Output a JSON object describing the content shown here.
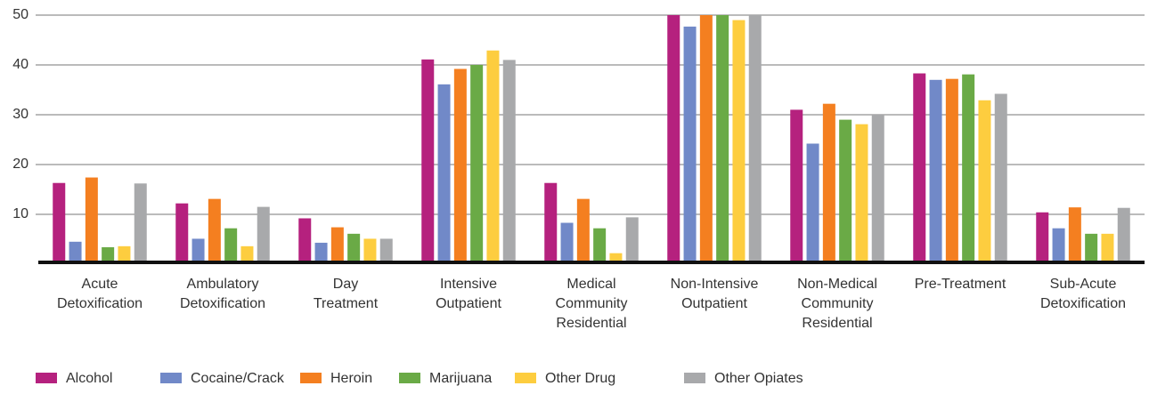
{
  "chart_data": {
    "type": "bar",
    "categories": [
      [
        "Acute",
        "Detoxification"
      ],
      [
        "Ambulatory",
        "Detoxification"
      ],
      [
        "Day",
        "Treatment"
      ],
      [
        "Intensive",
        "Outpatient"
      ],
      [
        "Medical",
        "Community",
        "Residential"
      ],
      [
        "Non-Intensive",
        "Outpatient"
      ],
      [
        "Non-Medical",
        "Community",
        "Residential"
      ],
      [
        "Pre-Treatment"
      ],
      [
        "Sub-Acute",
        "Detoxification"
      ]
    ],
    "series": [
      {
        "name": "Alcohol",
        "color": "#b5217e",
        "values": [
          16.3,
          12.2,
          9.2,
          41.1,
          16.3,
          50,
          31.0,
          38.3,
          10.4
        ]
      },
      {
        "name": "Cocaine/Crack",
        "color": "#7189c8",
        "values": [
          4.5,
          5.1,
          4.3,
          36.1,
          8.3,
          47.7,
          24.2,
          37.0,
          7.2
        ]
      },
      {
        "name": "Heroin",
        "color": "#f47f20",
        "values": [
          17.4,
          13.1,
          7.4,
          39.2,
          13.1,
          50,
          32.2,
          37.2,
          11.4
        ]
      },
      {
        "name": "Marijuana",
        "color": "#6aaa46",
        "values": [
          3.4,
          7.2,
          6.1,
          40.0,
          7.2,
          50,
          29.0,
          38.1,
          6.1
        ]
      },
      {
        "name": "Other Drug",
        "color": "#fdcd3f",
        "values": [
          3.6,
          3.6,
          5.1,
          42.9,
          2.2,
          49.0,
          28.1,
          32.9,
          6.1
        ]
      },
      {
        "name": "Other Opiates",
        "color": "#a8a9ab",
        "values": [
          16.2,
          11.5,
          5.1,
          41.0,
          9.4,
          50,
          30.0,
          34.2,
          11.3
        ]
      }
    ],
    "ylim": [
      0,
      50
    ],
    "yticks": [
      10,
      20,
      30,
      40,
      50
    ],
    "grid": true,
    "legend": "bottom"
  }
}
